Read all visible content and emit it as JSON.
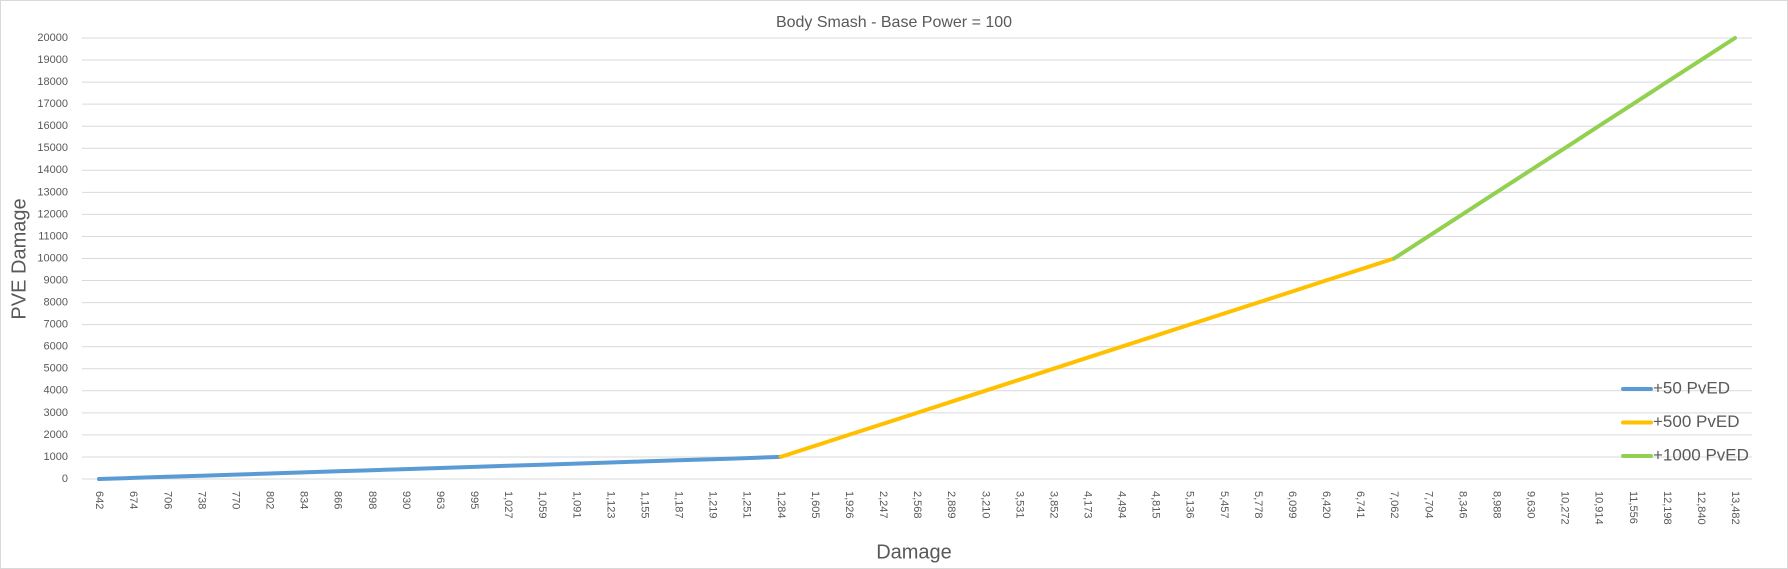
{
  "chart_data": {
    "type": "line",
    "title": "Body Smash - Base Power = 100",
    "xlabel": "Damage",
    "ylabel": "PVE Damage",
    "categories": [
      "642",
      "674",
      "706",
      "738",
      "770",
      "802",
      "834",
      "866",
      "898",
      "930",
      "963",
      "995",
      "1,027",
      "1,059",
      "1,091",
      "1,123",
      "1,155",
      "1,187",
      "1,219",
      "1,251",
      "1,284",
      "1,605",
      "1,926",
      "2,247",
      "2,568",
      "2,889",
      "3,210",
      "3,531",
      "3,852",
      "4,173",
      "4,494",
      "4,815",
      "5,136",
      "5,457",
      "5,778",
      "6,099",
      "6,420",
      "6,741",
      "7,062",
      "7,704",
      "8,346",
      "8,988",
      "9,630",
      "10,272",
      "10,914",
      "11,556",
      "12,198",
      "12,840",
      "13,482"
    ],
    "series": [
      {
        "name": "+50 PvED",
        "color": "#5b9bd5",
        "values": [
          0,
          50,
          100,
          150,
          200,
          250,
          300,
          350,
          400,
          450,
          500,
          550,
          600,
          650,
          700,
          750,
          800,
          850,
          900,
          950,
          1000,
          null,
          null,
          null,
          null,
          null,
          null,
          null,
          null,
          null,
          null,
          null,
          null,
          null,
          null,
          null,
          null,
          null,
          null,
          null,
          null,
          null,
          null,
          null,
          null,
          null,
          null,
          null,
          null
        ]
      },
      {
        "name": "+500 PvED",
        "color": "#ffc000",
        "values": [
          null,
          null,
          null,
          null,
          null,
          null,
          null,
          null,
          null,
          null,
          null,
          null,
          null,
          null,
          null,
          null,
          null,
          null,
          null,
          null,
          1000,
          1500,
          2000,
          2500,
          3000,
          3500,
          4000,
          4500,
          5000,
          5500,
          6000,
          6500,
          7000,
          7500,
          8000,
          8500,
          9000,
          9500,
          10000,
          null,
          null,
          null,
          null,
          null,
          null,
          null,
          null,
          null,
          null
        ]
      },
      {
        "name": "+1000 PvED",
        "color": "#92d050",
        "values": [
          null,
          null,
          null,
          null,
          null,
          null,
          null,
          null,
          null,
          null,
          null,
          null,
          null,
          null,
          null,
          null,
          null,
          null,
          null,
          null,
          null,
          null,
          null,
          null,
          null,
          null,
          null,
          null,
          null,
          null,
          null,
          null,
          null,
          null,
          null,
          null,
          null,
          null,
          10000,
          11000,
          12000,
          13000,
          14000,
          15000,
          16000,
          17000,
          18000,
          19000,
          20000
        ]
      }
    ],
    "ylim": [
      0,
      20000
    ],
    "yticks": [
      0,
      1000,
      2000,
      3000,
      4000,
      5000,
      6000,
      7000,
      8000,
      9000,
      10000,
      11000,
      12000,
      13000,
      14000,
      15000,
      16000,
      17000,
      18000,
      19000,
      20000
    ],
    "grid": true,
    "legend": "lower right"
  }
}
